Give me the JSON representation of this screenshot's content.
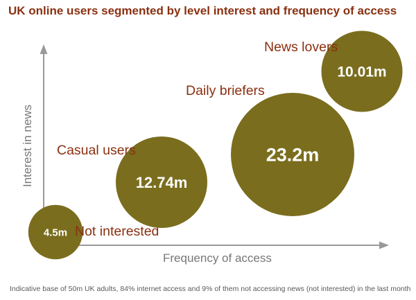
{
  "title": "UK online users segmented by level interest and frequency of access",
  "footnote": "Indicative base of 50m UK adults, 84% internet access and 9% of them not accessing news (not interested) in the last month",
  "colors": {
    "bubble": "#7a6d1e",
    "category_text": "#8a3010",
    "axis": "#999999",
    "axis_text": "#777777"
  },
  "chart_data": {
    "type": "scatter",
    "title": "UK online users segmented by level interest and frequency of access",
    "xlabel": "Frequency of access",
    "ylabel": "Interest in news",
    "grid": false,
    "series": [
      {
        "name": "Not interested",
        "value_label": "4.5m",
        "size": 4.5
      },
      {
        "name": "Casual users",
        "value_label": "12.74m",
        "size": 12.74
      },
      {
        "name": "Daily briefers",
        "value_label": "23.2m",
        "size": 23.2
      },
      {
        "name": "News lovers",
        "value_label": "10.01m",
        "size": 10.01
      }
    ]
  }
}
